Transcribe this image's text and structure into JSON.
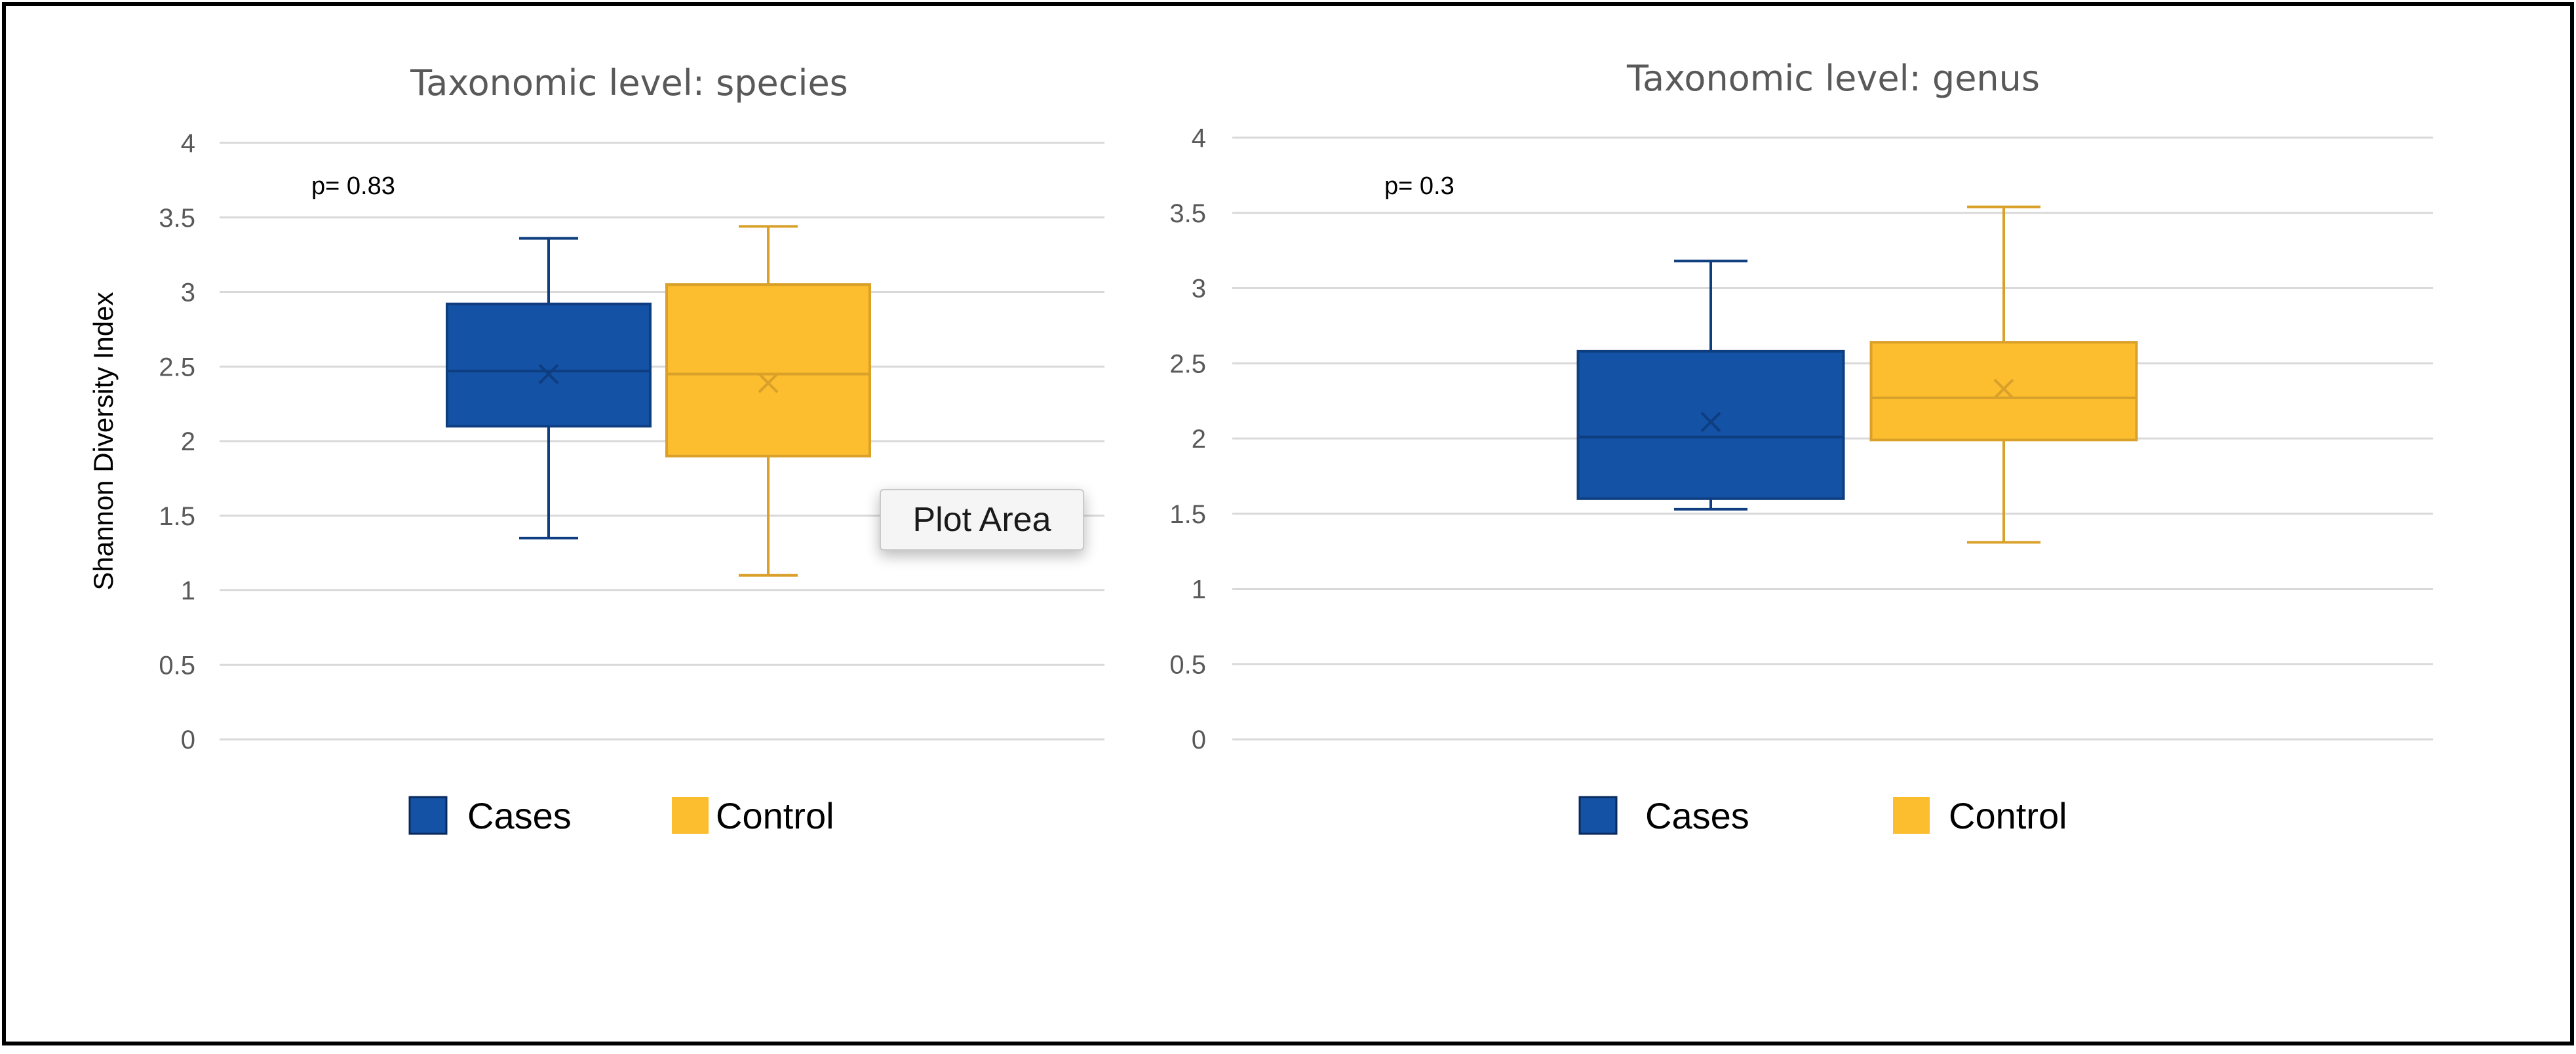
{
  "chart_data": [
    {
      "type": "box",
      "title": "Taxonomic level: species",
      "ylabel": "Shannon Diversity Index",
      "xlabel": "",
      "ylim": [
        0,
        4
      ],
      "yticks": [
        "0",
        "0.5",
        "1",
        "1.5",
        "2",
        "2.5",
        "3",
        "3.5",
        "4"
      ],
      "ytick_values": [
        0,
        0.5,
        1,
        1.5,
        2,
        2.5,
        3,
        3.5,
        4
      ],
      "annotation": "p= 0.83",
      "grid": true,
      "series": [
        {
          "name": "Cases",
          "whisker_min": 1.35,
          "q1": 2.1,
          "median": 2.47,
          "q3": 2.92,
          "whisker_max": 3.36,
          "mean": 2.45
        },
        {
          "name": "Control",
          "whisker_min": 1.1,
          "q1": 1.9,
          "median": 2.45,
          "q3": 3.05,
          "whisker_max": 3.44,
          "mean": 2.39
        }
      ]
    },
    {
      "type": "box",
      "title": "Taxonomic level: genus",
      "ylabel": "",
      "xlabel": "",
      "ylim": [
        0,
        4
      ],
      "yticks": [
        "0",
        "0.5",
        "1",
        "1.5",
        "2",
        "2.5",
        "3",
        "3.5",
        "4"
      ],
      "ytick_values": [
        0,
        0.5,
        1,
        1.5,
        2,
        2.5,
        3,
        3.5,
        4
      ],
      "annotation": "p= 0.3",
      "grid": true,
      "series": [
        {
          "name": "Cases",
          "whisker_min": 1.53,
          "q1": 1.6,
          "median": 2.01,
          "q3": 2.58,
          "whisker_max": 3.18,
          "mean": 2.11
        },
        {
          "name": "Control",
          "whisker_min": 1.31,
          "q1": 1.99,
          "median": 2.27,
          "q3": 2.64,
          "whisker_max": 3.54,
          "mean": 2.33
        }
      ]
    }
  ],
  "legend": [
    {
      "label": "Cases",
      "color": "#1452a5"
    },
    {
      "label": "Control",
      "color": "#fcbd2f"
    }
  ],
  "colors": {
    "cases_fill": "#1452a5",
    "cases_line": "#0e3d80",
    "control_fill": "#fcbd2f",
    "control_line": "#d9a02a",
    "grid": "#d9d9d9",
    "frame": "#000000"
  },
  "tooltip": {
    "label": "Plot Area"
  }
}
